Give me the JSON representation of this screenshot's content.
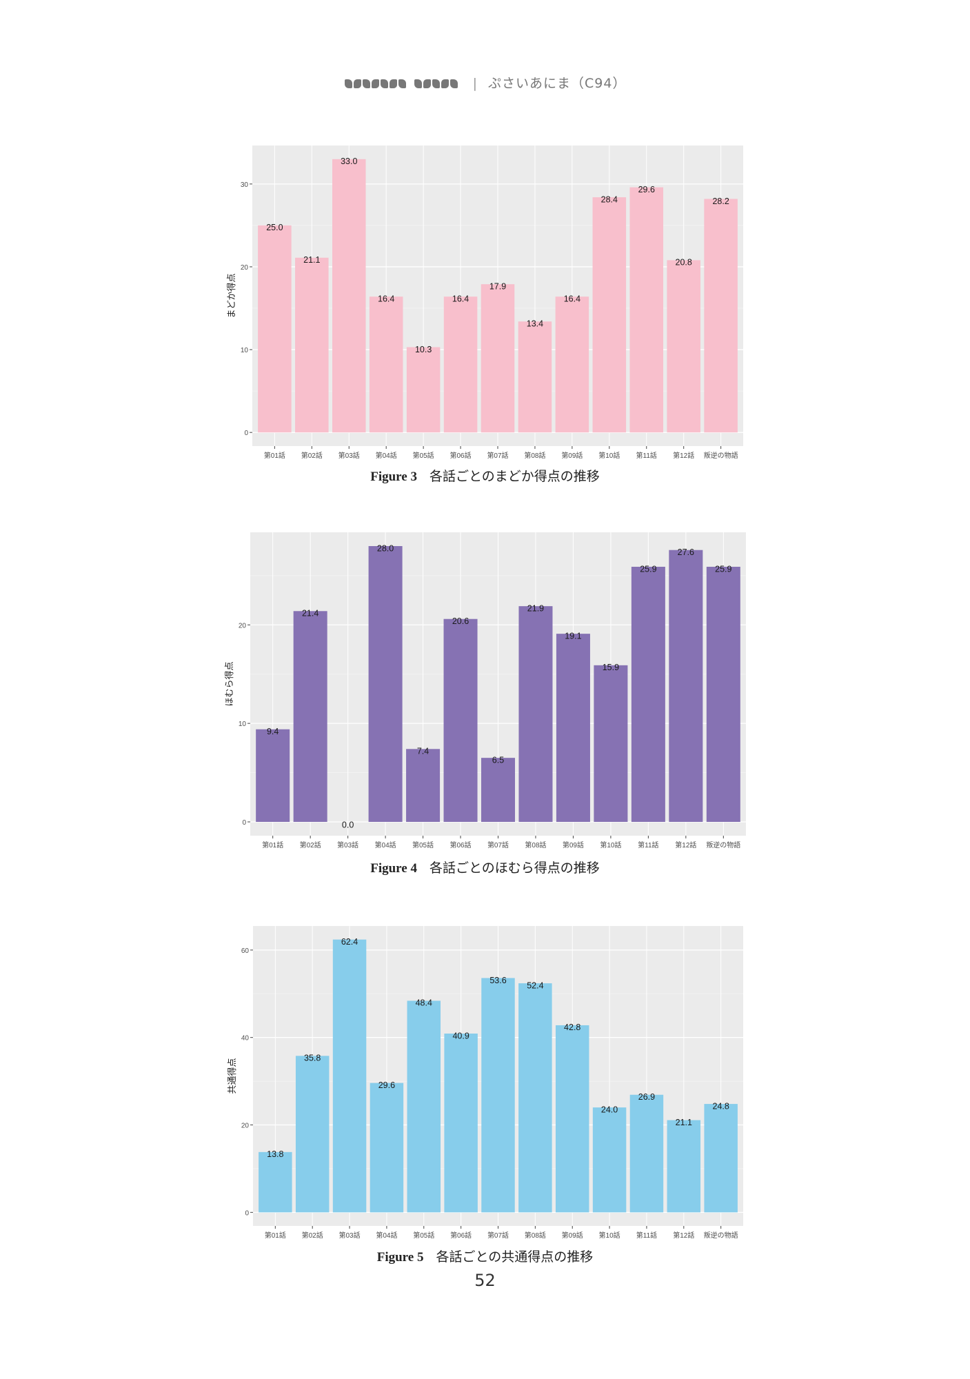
{
  "header": {
    "separator": "|",
    "subtitle": "ぷさいあにま（C94）"
  },
  "page_number": "52",
  "chart_data": [
    {
      "type": "bar",
      "caption_label": "Figure 3",
      "caption_text": "各話ごとのまどか得点の推移",
      "ylabel": "まどか得点",
      "xlabel": "",
      "color": "#F8BFCC",
      "categories": [
        "第01話",
        "第02話",
        "第03話",
        "第04話",
        "第05話",
        "第06話",
        "第07話",
        "第08話",
        "第09話",
        "第10話",
        "第11話",
        "第12話",
        "叛逆の物語"
      ],
      "values": [
        25.0,
        21.1,
        33.0,
        16.4,
        10.3,
        16.4,
        17.9,
        13.4,
        16.4,
        28.4,
        29.6,
        20.8,
        28.2
      ],
      "data_labels": [
        "25.0",
        "21.1",
        "33.0",
        "16.4",
        "10.3",
        "16.4",
        "17.9",
        "13.4",
        "16.4",
        "28.4",
        "29.6",
        "20.8",
        "28.2"
      ],
      "yticks": [
        0,
        10,
        20,
        30
      ],
      "ylim": [
        -1.65,
        34.65
      ],
      "grid": true
    },
    {
      "type": "bar",
      "caption_label": "Figure 4",
      "caption_text": "各話ごとのほむら得点の推移",
      "ylabel": "ほむら得点",
      "xlabel": "",
      "color": "#8672B3",
      "categories": [
        "第01話",
        "第02話",
        "第03話",
        "第04話",
        "第05話",
        "第06話",
        "第07話",
        "第08話",
        "第09話",
        "第10話",
        "第11話",
        "第12話",
        "叛逆の物語"
      ],
      "values": [
        9.4,
        21.4,
        0.0,
        28.0,
        7.4,
        20.6,
        6.5,
        21.9,
        19.1,
        15.9,
        25.9,
        27.6,
        25.9
      ],
      "data_labels": [
        "9.4",
        "21.4",
        "0.0",
        "28.0",
        "7.4",
        "20.6",
        "6.5",
        "21.9",
        "19.1",
        "15.9",
        "25.9",
        "27.6",
        "25.9"
      ],
      "yticks": [
        0,
        10,
        20
      ],
      "ylim": [
        -1.4,
        29.4
      ],
      "grid": true
    },
    {
      "type": "bar",
      "caption_label": "Figure 5",
      "caption_text": "各話ごとの共通得点の推移",
      "ylabel": "共通得点",
      "xlabel": "",
      "color": "#87CDEB",
      "categories": [
        "第01話",
        "第02話",
        "第03話",
        "第04話",
        "第05話",
        "第06話",
        "第07話",
        "第08話",
        "第09話",
        "第10話",
        "第11話",
        "第12話",
        "叛逆の物語"
      ],
      "values": [
        13.8,
        35.8,
        62.4,
        29.6,
        48.4,
        40.9,
        53.6,
        52.4,
        42.8,
        24.0,
        26.9,
        21.1,
        24.8
      ],
      "data_labels": [
        "13.8",
        "35.8",
        "62.4",
        "29.6",
        "48.4",
        "40.9",
        "53.6",
        "52.4",
        "42.8",
        "24.0",
        "26.9",
        "21.1",
        "24.8"
      ],
      "yticks": [
        0,
        20,
        40,
        60
      ],
      "ylim": [
        -3.1,
        65.5
      ],
      "grid": true
    }
  ]
}
